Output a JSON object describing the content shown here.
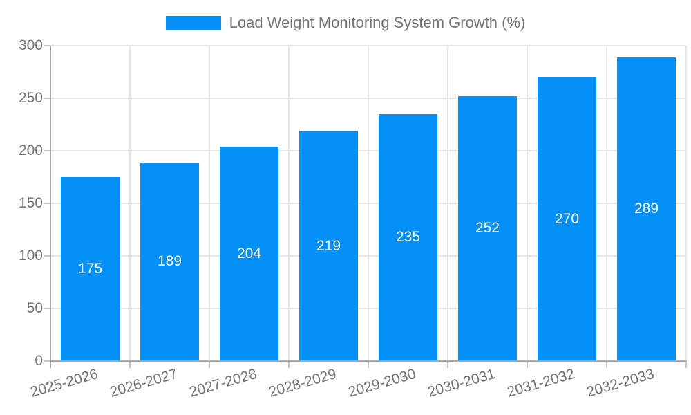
{
  "chart_data": {
    "type": "bar",
    "title": "",
    "legend": {
      "label": "Load Weight Monitoring System Growth (%)",
      "position": "top"
    },
    "categories": [
      "2025-2026",
      "2026-2027",
      "2027-2028",
      "2028-2029",
      "2029-2030",
      "2030-2031",
      "2031-2032",
      "2032-2033"
    ],
    "values": [
      175,
      189,
      204,
      219,
      235,
      252,
      270,
      289
    ],
    "xlabel": "",
    "ylabel": "",
    "ylim": [
      0,
      300
    ],
    "y_ticks": [
      0,
      50,
      100,
      150,
      200,
      250,
      300
    ],
    "grid": true,
    "value_labels_shown": true,
    "colors": {
      "bar": "#0590F8",
      "grid_line": "#e6e6e6",
      "axis_line": "#a8a8a8",
      "tick_mark": "#c4c4c4",
      "tick_label": "#757575",
      "value_label": "#ffffff",
      "background": "#ffffff"
    }
  }
}
